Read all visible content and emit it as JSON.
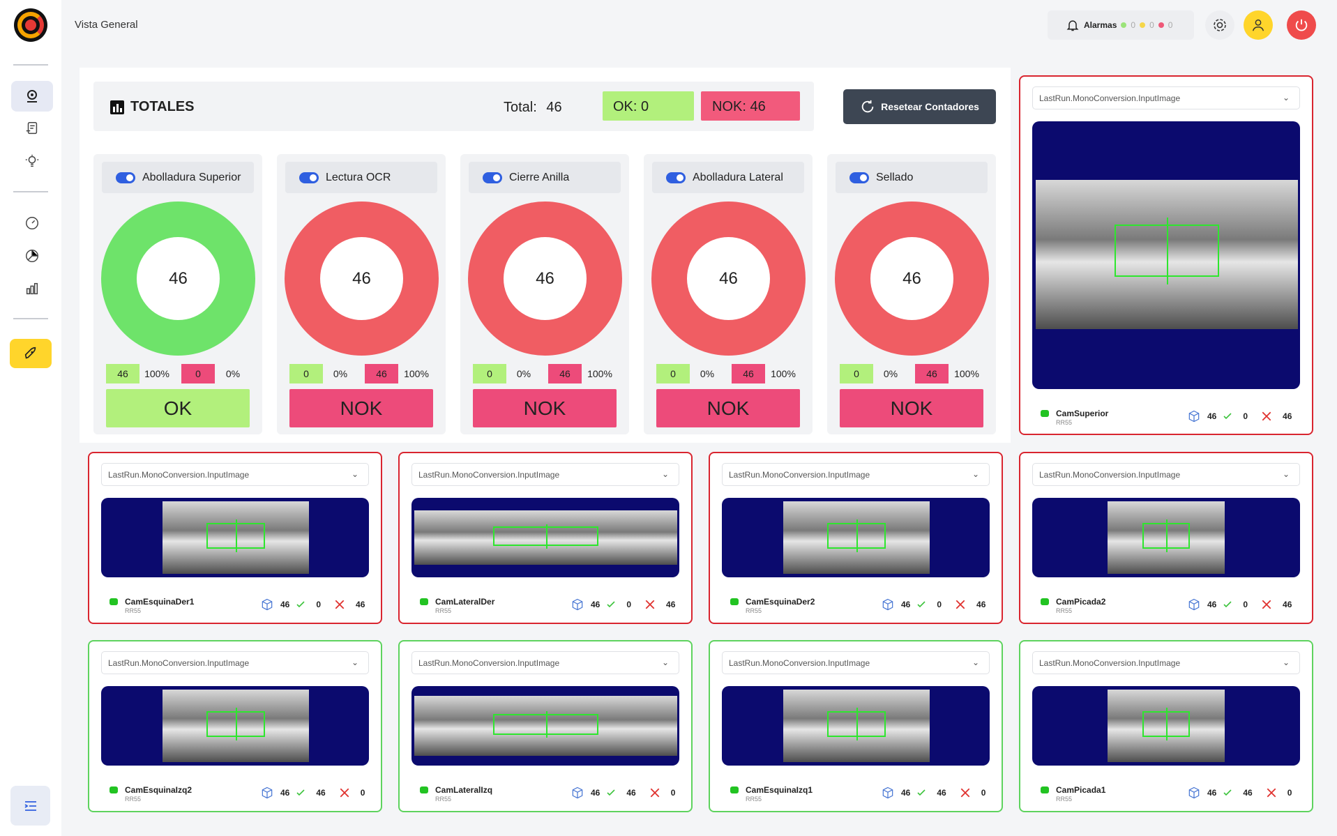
{
  "header": {
    "title": "Vista General",
    "alarms_label": "Alarmas",
    "alarm_counts": [
      {
        "color": "#9be37a",
        "value": "0"
      },
      {
        "color": "#f5d64a",
        "value": "0"
      },
      {
        "color": "#ef5878",
        "value": "0"
      }
    ],
    "icons": [
      "bell-icon",
      "gear-icon",
      "user-icon",
      "power-icon"
    ]
  },
  "sidebar": {
    "icons": [
      "vision-icon",
      "recipe-icon",
      "bulb-icon",
      "speedometer-icon",
      "pie-chart-icon",
      "bar-chart-icon",
      "rocket-icon",
      "collapse-menu-icon"
    ]
  },
  "totales": {
    "title": "TOTALES",
    "total_label": "Total:",
    "total_value": "46",
    "ok_label": "OK: 0",
    "nok_label": "NOK: 46",
    "reset_label": "Resetear Contadores"
  },
  "inspections": [
    {
      "name": "Abolladura Superior",
      "count": "46",
      "ok": "46",
      "ok_pct": "100%",
      "nok": "0",
      "nok_pct": "0%",
      "verdict": "OK",
      "ok_fraction": 1.0
    },
    {
      "name": "Lectura OCR",
      "count": "46",
      "ok": "0",
      "ok_pct": "0%",
      "nok": "46",
      "nok_pct": "100%",
      "verdict": "NOK",
      "ok_fraction": 0.0
    },
    {
      "name": "Cierre Anilla",
      "count": "46",
      "ok": "0",
      "ok_pct": "0%",
      "nok": "46",
      "nok_pct": "100%",
      "verdict": "NOK",
      "ok_fraction": 0.0
    },
    {
      "name": "Abolladura Lateral",
      "count": "46",
      "ok": "0",
      "ok_pct": "0%",
      "nok": "46",
      "nok_pct": "100%",
      "verdict": "NOK",
      "ok_fraction": 0.0
    },
    {
      "name": "Sellado",
      "count": "46",
      "ok": "0",
      "ok_pct": "0%",
      "nok": "46",
      "nok_pct": "100%",
      "verdict": "NOK",
      "ok_fraction": 0.0
    }
  ],
  "colors": {
    "ok": "#6ee36a",
    "nok": "#f05d63"
  },
  "cameras": [
    {
      "select": "LastRun.MonoConversion.InputImage",
      "name": "CamSuperior",
      "sub": "RR55",
      "total": "46",
      "ok": "0",
      "nok": "46",
      "status": "nok"
    },
    {
      "select": "LastRun.MonoConversion.InputImage",
      "name": "CamEsquinaDer1",
      "sub": "RR55",
      "total": "46",
      "ok": "0",
      "nok": "46",
      "status": "nok"
    },
    {
      "select": "LastRun.MonoConversion.InputImage",
      "name": "CamLateralDer",
      "sub": "RR55",
      "total": "46",
      "ok": "0",
      "nok": "46",
      "status": "nok"
    },
    {
      "select": "LastRun.MonoConversion.InputImage",
      "name": "CamEsquinaDer2",
      "sub": "RR55",
      "total": "46",
      "ok": "0",
      "nok": "46",
      "status": "nok"
    },
    {
      "select": "LastRun.MonoConversion.InputImage",
      "name": "CamPicada2",
      "sub": "RR55",
      "total": "46",
      "ok": "0",
      "nok": "46",
      "status": "nok"
    },
    {
      "select": "LastRun.MonoConversion.InputImage",
      "name": "CamEsquinaIzq2",
      "sub": "RR55",
      "total": "46",
      "ok": "46",
      "nok": "0",
      "status": "ok"
    },
    {
      "select": "LastRun.MonoConversion.InputImage",
      "name": "CamLateralIzq",
      "sub": "RR55",
      "total": "46",
      "ok": "46",
      "nok": "0",
      "status": "ok"
    },
    {
      "select": "LastRun.MonoConversion.InputImage",
      "name": "CamEsquinaIzq1",
      "sub": "RR55",
      "total": "46",
      "ok": "46",
      "nok": "0",
      "status": "ok"
    },
    {
      "select": "LastRun.MonoConversion.InputImage",
      "name": "CamPicada1",
      "sub": "RR55",
      "total": "46",
      "ok": "46",
      "nok": "0",
      "status": "ok"
    }
  ]
}
